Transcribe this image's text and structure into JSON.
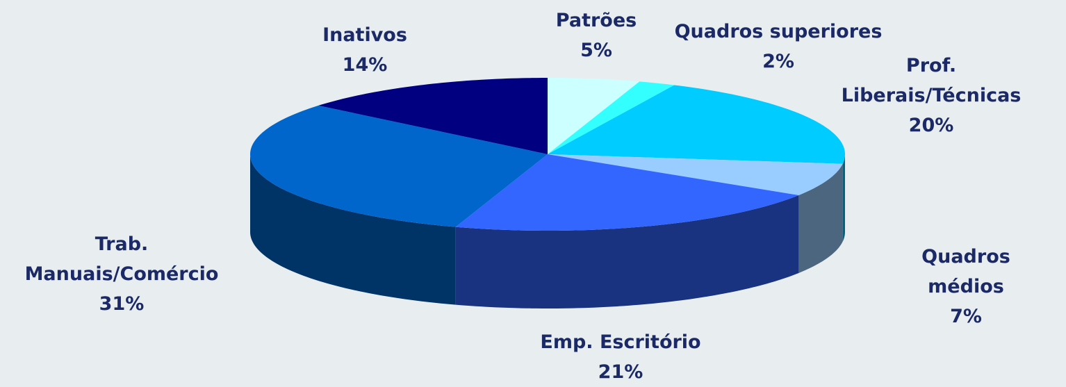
{
  "chart_data": {
    "type": "pie3d",
    "categories": [
      "Patrões",
      "Quadros superiores",
      "Prof.\nLiberais/Técnicas",
      "Quadros médios",
      "Emp. Escritório",
      "Trab.\nManuais/Comércio",
      "Inativos"
    ],
    "values": [
      5,
      2,
      20,
      7,
      21,
      31,
      14
    ],
    "value_labels": [
      "5%",
      "2%",
      "20%",
      "7%",
      "21%",
      "31%",
      "14%"
    ],
    "colors": [
      "#ccffff",
      "#33ffff",
      "#00ccff",
      "#99ccff",
      "#3366ff",
      "#0066cc",
      "#000080"
    ]
  }
}
